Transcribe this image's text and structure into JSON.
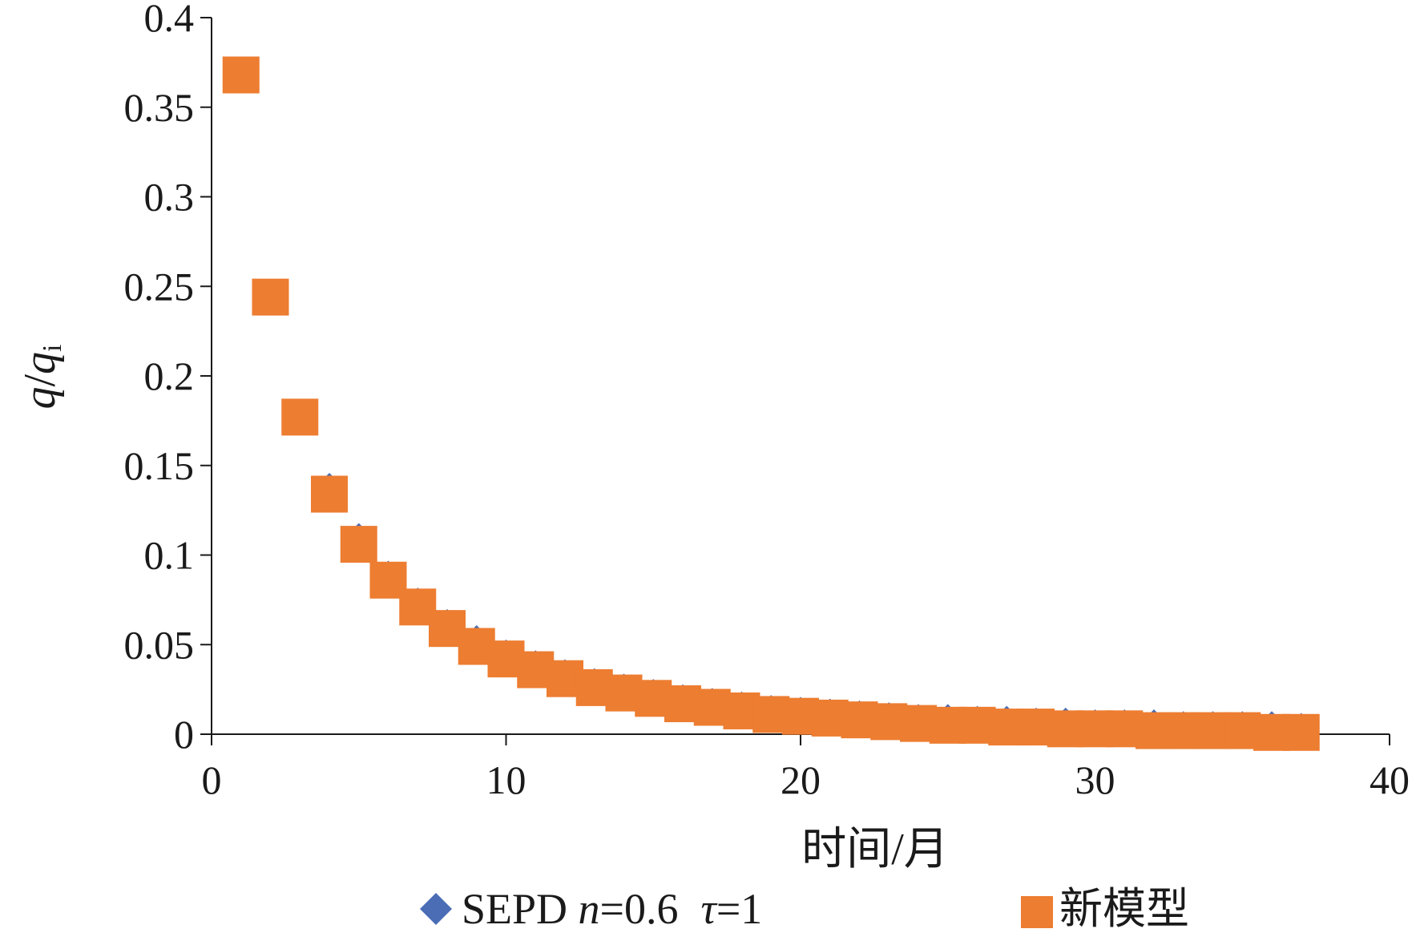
{
  "chart_data": {
    "type": "scatter",
    "title": "",
    "xlabel": "时间/月",
    "ylabel": {
      "q1": "q",
      "slash": "/",
      "q2": "q",
      "sub": "i"
    },
    "xlim": [
      0,
      40
    ],
    "ylim": [
      0,
      0.4
    ],
    "xticks": [
      0,
      10,
      20,
      30,
      40
    ],
    "xtick_labels": [
      "0",
      "10",
      "20",
      "30",
      "40"
    ],
    "yticks": [
      0,
      0.05,
      0.1,
      0.15,
      0.2,
      0.25,
      0.3,
      0.35,
      0.4
    ],
    "ytick_labels": [
      "0",
      "0.05",
      "0.1",
      "0.15",
      "0.2",
      "0.25",
      "0.3",
      "0.35",
      "0.4"
    ],
    "grid": false,
    "legend_position": "bottom",
    "series": [
      {
        "name": "SEPD n=0.6 τ=1",
        "legend": {
          "prefix": "SEPD ",
          "n": "n",
          "n_val": "=0.6",
          "tau": "τ",
          "tau_val": "=1"
        },
        "marker": "diamond",
        "color": "#4a6db5",
        "x": [
          1,
          2,
          3,
          4,
          5,
          6,
          7,
          8,
          9,
          10,
          11,
          12,
          13,
          14,
          15,
          16,
          17,
          18,
          19,
          20,
          21,
          22,
          23,
          24,
          25,
          26,
          27,
          28,
          29,
          30,
          31,
          32,
          33,
          34,
          35,
          36,
          37
        ],
        "y": [
          0.368,
          0.244,
          0.177,
          0.136,
          0.108,
          0.087,
          0.072,
          0.06,
          0.051,
          0.043,
          0.037,
          0.032,
          0.027,
          0.024,
          0.021,
          0.018,
          0.016,
          0.014,
          0.012,
          0.011,
          0.01,
          0.009,
          0.008,
          0.007,
          0.007,
          0.006,
          0.006,
          0.005,
          0.005,
          0.004,
          0.004,
          0.004,
          0.003,
          0.003,
          0.003,
          0.003,
          0.002
        ]
      },
      {
        "name": "新模型",
        "marker": "square",
        "color": "#ed7d31",
        "x": [
          1,
          2,
          3,
          4,
          5,
          6,
          7,
          8,
          9,
          10,
          11,
          12,
          13,
          14,
          15,
          16,
          17,
          18,
          19,
          20,
          21,
          22,
          23,
          24,
          25,
          26,
          27,
          28,
          29,
          30,
          31,
          32,
          33,
          34,
          35,
          36,
          37
        ],
        "y": [
          0.368,
          0.244,
          0.177,
          0.134,
          0.106,
          0.086,
          0.071,
          0.059,
          0.049,
          0.042,
          0.036,
          0.031,
          0.026,
          0.023,
          0.02,
          0.017,
          0.015,
          0.013,
          0.011,
          0.01,
          0.009,
          0.008,
          0.007,
          0.006,
          0.005,
          0.005,
          0.004,
          0.004,
          0.003,
          0.003,
          0.003,
          0.002,
          0.002,
          0.002,
          0.002,
          0.001,
          0.001
        ]
      }
    ]
  }
}
